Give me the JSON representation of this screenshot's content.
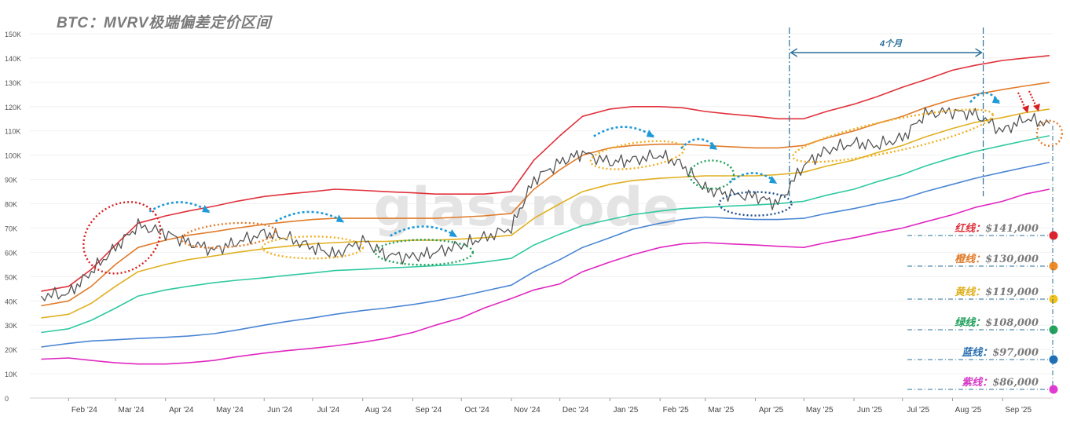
{
  "title": "BTC：MVRV极端偏差定价区间",
  "watermark": "glassnode",
  "annotation": {
    "span_label": "4个月"
  },
  "legend": [
    {
      "name": "红线",
      "value": "$141,000",
      "color": "#e0313b",
      "dot": "#e0202a"
    },
    {
      "name": "橙线",
      "value": "$130,000",
      "color": "#e07b2a",
      "dot": "#f08a24"
    },
    {
      "name": "黄线",
      "value": "$119,000",
      "color": "#e0b020",
      "dot": "#f2c21a"
    },
    {
      "name": "绿线",
      "value": "$108,000",
      "color": "#1e9e5a",
      "dot": "#22a55a"
    },
    {
      "name": "蓝线",
      "value": "$97,000",
      "color": "#2a6fb0",
      "dot": "#1f6fb8"
    },
    {
      "name": "紫线",
      "value": "$86,000",
      "color": "#d63cc8",
      "dot": "#e23ad2"
    }
  ],
  "chart_data": {
    "type": "line",
    "ylim": [
      0,
      150000
    ],
    "y_ticks": [
      "0",
      "10K",
      "20K",
      "30K",
      "40K",
      "50K",
      "60K",
      "70K",
      "80K",
      "90K",
      "100K",
      "110K",
      "120K",
      "130K",
      "140K",
      "150K"
    ],
    "x_ticks": [
      "Feb '24",
      "Mar '24",
      "Apr '24",
      "May '24",
      "Jun '24",
      "Jul '24",
      "Aug '24",
      "Sep '24",
      "Oct '24",
      "Nov '24",
      "Dec '24",
      "Jan '25",
      "Feb '25",
      "Mar '25",
      "Apr '25",
      "May '25",
      "Jun '25",
      "Jul '25",
      "Aug '25",
      "Sep '25"
    ],
    "x": [
      "2024-01-15",
      "2024-02-01",
      "2024-02-15",
      "2024-03-01",
      "2024-03-15",
      "2024-04-01",
      "2024-04-15",
      "2024-05-01",
      "2024-05-15",
      "2024-06-01",
      "2024-06-15",
      "2024-07-01",
      "2024-07-15",
      "2024-08-01",
      "2024-08-15",
      "2024-09-01",
      "2024-09-15",
      "2024-10-01",
      "2024-10-15",
      "2024-11-01",
      "2024-11-15",
      "2024-12-01",
      "2024-12-15",
      "2025-01-01",
      "2025-01-15",
      "2025-02-01",
      "2025-02-15",
      "2025-03-01",
      "2025-03-15",
      "2025-04-01",
      "2025-04-15",
      "2025-05-01",
      "2025-05-15",
      "2025-06-01",
      "2025-06-15",
      "2025-07-01",
      "2025-07-15",
      "2025-08-01",
      "2025-08-15",
      "2025-09-01",
      "2025-09-15",
      "2025-09-30"
    ],
    "series": [
      {
        "name": "BTC",
        "color": "#555555",
        "values": [
          42000,
          43000,
          52000,
          62000,
          71000,
          68000,
          64000,
          61000,
          64000,
          68000,
          66000,
          62000,
          59000,
          65000,
          59000,
          58000,
          60000,
          63000,
          66000,
          70000,
          90000,
          97000,
          101000,
          97000,
          98000,
          100000,
          96000,
          86000,
          84000,
          83000,
          80000,
          96000,
          102000,
          105000,
          104000,
          107000,
          117000,
          118000,
          117000,
          110000,
          115000,
          113000
        ]
      },
      {
        "name": "红线",
        "color": "#e0313b",
        "values": [
          44000,
          46000,
          53000,
          63000,
          72000,
          75000,
          77000,
          79000,
          81000,
          83000,
          84000,
          85000,
          86000,
          85500,
          85000,
          84500,
          84000,
          84000,
          84000,
          85000,
          98000,
          108000,
          116000,
          119000,
          120000,
          120000,
          119500,
          118000,
          117000,
          116000,
          115000,
          115000,
          118000,
          121000,
          124000,
          128000,
          131000,
          135000,
          137000,
          139000,
          140000,
          141000
        ]
      },
      {
        "name": "橙线",
        "color": "#e07b2a",
        "values": [
          38000,
          40000,
          46000,
          55000,
          62000,
          65000,
          67000,
          68500,
          70000,
          71500,
          72500,
          73500,
          74000,
          74000,
          74000,
          74000,
          74000,
          74500,
          75000,
          76000,
          86000,
          94000,
          100000,
          103000,
          104000,
          104500,
          104500,
          104000,
          103500,
          103000,
          103000,
          104000,
          107000,
          110000,
          113000,
          116000,
          119500,
          123000,
          125000,
          127000,
          128500,
          130000
        ]
      },
      {
        "name": "黄线",
        "color": "#e0b020",
        "values": [
          33000,
          34500,
          39000,
          46000,
          52000,
          55000,
          57000,
          58500,
          60000,
          61500,
          62500,
          63500,
          64000,
          64500,
          64500,
          65000,
          65000,
          65500,
          66000,
          67000,
          74000,
          80000,
          85000,
          88000,
          89500,
          90500,
          91000,
          91500,
          91500,
          91500,
          92000,
          93000,
          95500,
          98000,
          101000,
          104000,
          107500,
          111000,
          113500,
          115500,
          117500,
          119000
        ]
      },
      {
        "name": "绿线",
        "color": "#2fc9a0",
        "values": [
          27000,
          28500,
          32000,
          37000,
          42000,
          44500,
          46000,
          47500,
          48500,
          49500,
          50500,
          51500,
          52500,
          53000,
          53500,
          54000,
          54500,
          55000,
          56000,
          57500,
          63000,
          67500,
          71000,
          73500,
          75500,
          77000,
          78000,
          78500,
          79000,
          79500,
          80000,
          81000,
          83500,
          86000,
          89000,
          92000,
          95500,
          99000,
          101500,
          104000,
          106000,
          108000
        ]
      },
      {
        "name": "蓝线",
        "color": "#4a86d4",
        "values": [
          21000,
          22500,
          23500,
          24000,
          24500,
          25000,
          25500,
          26500,
          28000,
          30000,
          31500,
          33000,
          34500,
          36000,
          37000,
          38500,
          40000,
          42000,
          44000,
          46500,
          52000,
          57000,
          62000,
          66000,
          69500,
          72000,
          73500,
          74500,
          74000,
          73500,
          73500,
          74000,
          76000,
          78000,
          80000,
          82000,
          85000,
          88000,
          90500,
          93000,
          95000,
          97000
        ]
      },
      {
        "name": "紫线",
        "color": "#e028c0",
        "values": [
          16000,
          16500,
          15500,
          14500,
          14000,
          14000,
          14500,
          15500,
          17000,
          18500,
          19500,
          20500,
          21500,
          23000,
          24500,
          27000,
          30000,
          33000,
          37000,
          41000,
          44500,
          47000,
          52000,
          56000,
          59000,
          62000,
          63500,
          64000,
          63500,
          63000,
          62500,
          62000,
          64000,
          66000,
          68000,
          70000,
          72500,
          75500,
          78500,
          81000,
          84000,
          86000
        ]
      }
    ]
  }
}
